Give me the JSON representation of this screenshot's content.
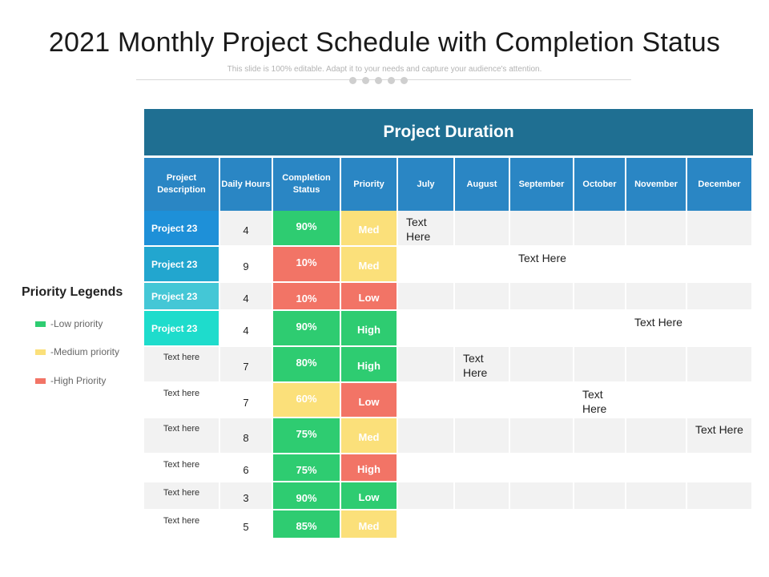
{
  "page": {
    "title": "2021 Monthly Project Schedule with Completion Status",
    "subtitle": "This slide is 100% editable. Adapt it to your needs and capture your audience's attention."
  },
  "legend": {
    "title": "Priority Legends",
    "items": [
      {
        "label": "-Low priority",
        "color": "#2ecc71"
      },
      {
        "label": "-Medium priority",
        "color": "#fbe07a"
      },
      {
        "label": "-High Priority",
        "color": "#f27466"
      }
    ]
  },
  "table": {
    "banner": "Project Duration",
    "headers": [
      "Project Description",
      "Daily Hours",
      "Completion Status",
      "Priority",
      "July",
      "August",
      "September",
      "October",
      "November",
      "December"
    ],
    "rows": [
      {
        "desc": "Project 23",
        "hours": "4",
        "status": "90%",
        "priority": "Med",
        "month": 0,
        "note": "Text Here",
        "desc_color": "#1e90d8"
      },
      {
        "desc": "Project 23",
        "hours": "9",
        "status": "10%",
        "priority": "Med",
        "month": 2,
        "note": "Text Here",
        "desc_color": "#22a6cf"
      },
      {
        "desc": "Project 23",
        "hours": "4",
        "status": "10%",
        "priority": "Low",
        "month": -1,
        "note": "",
        "desc_color": "#44c7d6"
      },
      {
        "desc": "Project 23",
        "hours": "4",
        "status": "90%",
        "priority": "High",
        "month": 4,
        "note": "Text Here",
        "desc_color": "#1edccc"
      },
      {
        "desc": "Text here",
        "hours": "7",
        "status": "80%",
        "priority": "High",
        "month": 1,
        "note": "Text Here",
        "desc_color": ""
      },
      {
        "desc": "Text here",
        "hours": "7",
        "status": "60%",
        "priority": "Low",
        "month": 3,
        "note": "Text Here",
        "desc_color": ""
      },
      {
        "desc": "Text here",
        "hours": "8",
        "status": "75%",
        "priority": "Med",
        "month": 5,
        "note": "Text Here",
        "desc_color": ""
      },
      {
        "desc": "Text here",
        "hours": "6",
        "status": "75%",
        "priority": "High",
        "month": -1,
        "note": "",
        "desc_color": ""
      },
      {
        "desc": "Text here",
        "hours": "3",
        "status": "90%",
        "priority": "Low",
        "month": -1,
        "note": "",
        "desc_color": ""
      },
      {
        "desc": "Text here",
        "hours": "5",
        "status": "85%",
        "priority": "Med",
        "month": -1,
        "note": "",
        "desc_color": ""
      }
    ],
    "status_colors": {
      "90%": "#2ecc71",
      "10%": "#f27466",
      "80%": "#2ecc71",
      "60%": "#fbe07a",
      "75%": "#2ecc71",
      "85%": "#2ecc71"
    },
    "priority_colors": {
      "Low": "#2ecc71",
      "Med": "#fbe07a",
      "High": "#2ecc71"
    },
    "priority_overrides": [
      {
        "row": 2,
        "color": "#f27466"
      },
      {
        "row": 5,
        "color": "#f27466"
      },
      {
        "row": 7,
        "color": "#f27466"
      },
      {
        "row": 8,
        "color": "#2ecc71"
      }
    ]
  }
}
